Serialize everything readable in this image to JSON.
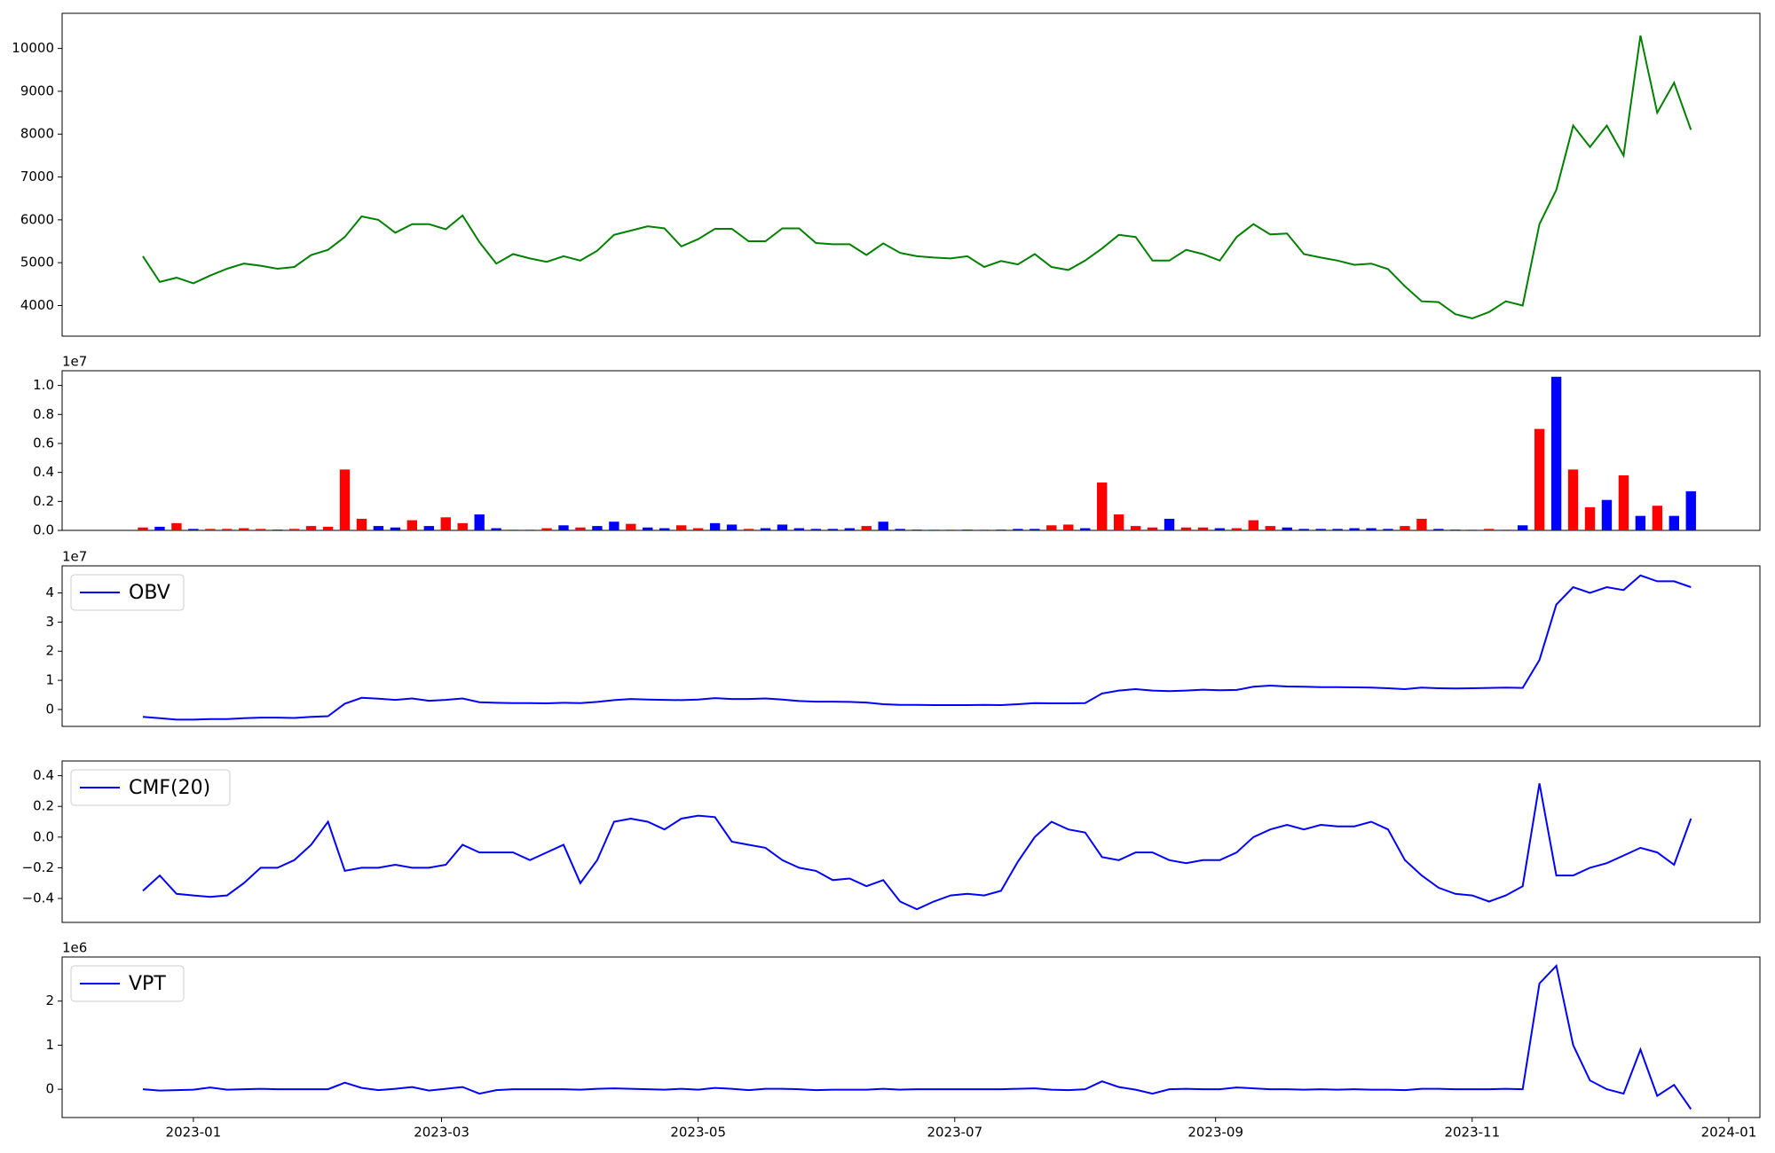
{
  "chart_data": [
    {
      "type": "line",
      "color": "#008000",
      "xlim": [
        -4.8,
        96.1
      ],
      "ylim": [
        3286,
        10820
      ],
      "yticks": [
        4000,
        5000,
        6000,
        7000,
        8000,
        9000,
        10000
      ],
      "values": [
        5150,
        4550,
        4650,
        4520,
        4700,
        4860,
        4980,
        4930,
        4860,
        4900,
        5180,
        5300,
        5600,
        6080,
        6000,
        5700,
        5900,
        5900,
        5780,
        6100,
        5480,
        4980,
        5200,
        5100,
        5020,
        5150,
        5050,
        5280,
        5650,
        5750,
        5850,
        5800,
        5380,
        5550,
        5790,
        5790,
        5500,
        5500,
        5800,
        5800,
        5460,
        5430,
        5430,
        5180,
        5450,
        5230,
        5150,
        5120,
        5100,
        5150,
        4900,
        5040,
        4960,
        5200,
        4900,
        4830,
        5050,
        5330,
        5650,
        5600,
        5050,
        5050,
        5300,
        5200,
        5050,
        5600,
        5900,
        5660,
        5680,
        5200,
        5120,
        5050,
        4950,
        4980,
        4850,
        4450,
        4100,
        4080,
        3800,
        3700,
        3850,
        4100,
        4000,
        5900,
        6700,
        8200,
        7700,
        8200,
        7500,
        10300,
        8500,
        9200,
        8100
      ]
    },
    {
      "type": "bar",
      "offset_text": "1e7",
      "xlim": [
        -4.8,
        96.1
      ],
      "ylim": [
        0,
        11016000
      ],
      "yticks": [
        {
          "value": 0,
          "label": "0.0"
        },
        {
          "value": 2000000,
          "label": "0.2"
        },
        {
          "value": 4000000,
          "label": "0.4"
        },
        {
          "value": 6000000,
          "label": "0.6"
        },
        {
          "value": 8000000,
          "label": "0.8"
        },
        {
          "value": 10000000,
          "label": "1.0"
        }
      ],
      "values": [
        200000,
        250000,
        500000,
        100000,
        100000,
        100000,
        150000,
        100000,
        50000,
        100000,
        300000,
        250000,
        4200000,
        800000,
        300000,
        200000,
        700000,
        300000,
        900000,
        500000,
        1100000,
        150000,
        50000,
        50000,
        150000,
        350000,
        200000,
        300000,
        600000,
        450000,
        200000,
        150000,
        350000,
        150000,
        500000,
        400000,
        100000,
        150000,
        400000,
        150000,
        100000,
        100000,
        150000,
        300000,
        600000,
        100000,
        50000,
        50000,
        50000,
        50000,
        50000,
        50000,
        100000,
        100000,
        350000,
        400000,
        150000,
        3300000,
        1100000,
        300000,
        200000,
        800000,
        200000,
        200000,
        150000,
        150000,
        700000,
        300000,
        200000,
        100000,
        100000,
        100000,
        150000,
        150000,
        100000,
        300000,
        800000,
        100000,
        50000,
        50000,
        100000,
        50000,
        350000,
        7000000,
        10600000,
        4200000,
        1600000,
        2100000,
        3800000,
        1000000,
        1700000,
        1000000,
        2700000
      ],
      "colors": [
        "red",
        "blue",
        "red",
        "blue",
        "red",
        "red",
        "red",
        "red",
        "blue",
        "red",
        "red",
        "red",
        "red",
        "red",
        "blue",
        "blue",
        "red",
        "blue",
        "red",
        "red",
        "blue",
        "blue",
        "red",
        "red",
        "red",
        "blue",
        "red",
        "blue",
        "blue",
        "red",
        "blue",
        "blue",
        "red",
        "red",
        "blue",
        "blue",
        "red",
        "blue",
        "blue",
        "blue",
        "blue",
        "blue",
        "blue",
        "red",
        "blue",
        "blue",
        "blue",
        "red",
        "red",
        "blue",
        "red",
        "blue",
        "blue",
        "blue",
        "red",
        "red",
        "blue",
        "red",
        "red",
        "red",
        "red",
        "blue",
        "red",
        "red",
        "blue",
        "red",
        "red",
        "red",
        "blue",
        "blue",
        "blue",
        "blue",
        "blue",
        "blue",
        "blue",
        "red",
        "red",
        "blue",
        "blue",
        "red",
        "red",
        "red",
        "blue",
        "red",
        "blue",
        "red",
        "red",
        "blue",
        "red",
        "blue",
        "red",
        "blue",
        "blue"
      ]
    },
    {
      "type": "line",
      "offset_text": "1e7",
      "legend": "upper left",
      "xlim": [
        -4.8,
        96.1
      ],
      "ylim": [
        -5800000,
        49300000
      ],
      "yticks": [
        0,
        {
          "value": 10000000,
          "label": "1"
        },
        {
          "value": 20000000,
          "label": "2"
        },
        {
          "value": 30000000,
          "label": "3"
        },
        {
          "value": 40000000,
          "label": "4"
        }
      ],
      "series": [
        {
          "name": "OBV",
          "color": "#0000ff",
          "values": [
            -2500000,
            -3000000,
            -3500000,
            -3500000,
            -3300000,
            -3300000,
            -3000000,
            -2800000,
            -2800000,
            -2900000,
            -2500000,
            -2300000,
            2000000,
            4000000,
            3700000,
            3300000,
            3800000,
            3000000,
            3300000,
            3800000,
            2500000,
            2300000,
            2200000,
            2200000,
            2100000,
            2300000,
            2200000,
            2600000,
            3200000,
            3600000,
            3400000,
            3300000,
            3200000,
            3400000,
            3900000,
            3600000,
            3600000,
            3800000,
            3400000,
            2900000,
            2700000,
            2700000,
            2600000,
            2400000,
            1800000,
            1600000,
            1600000,
            1500000,
            1500000,
            1500000,
            1600000,
            1500000,
            1800000,
            2200000,
            2100000,
            2100000,
            2200000,
            5500000,
            6500000,
            7000000,
            6500000,
            6300000,
            6500000,
            6800000,
            6600000,
            6700000,
            7800000,
            8200000,
            7900000,
            7800000,
            7700000,
            7700000,
            7600000,
            7500000,
            7300000,
            7000000,
            7500000,
            7300000,
            7200000,
            7300000,
            7400000,
            7500000,
            7400000,
            17000000,
            36000000,
            42000000,
            40000000,
            42000000,
            41000000,
            46000000,
            44000000,
            44000000,
            42000000
          ]
        }
      ]
    },
    {
      "type": "line",
      "legend": "upper left",
      "xlim": [
        -4.8,
        96.1
      ],
      "ylim": [
        -0.556,
        0.496
      ],
      "yticks": [
        {
          "value": -0.4,
          "label": "−0.4"
        },
        {
          "value": -0.2,
          "label": "−0.2"
        },
        {
          "value": 0,
          "label": "0.0"
        },
        0.2,
        0.4
      ],
      "series": [
        {
          "name": "CMF(20)",
          "color": "#0000ff",
          "values": [
            -0.35,
            -0.25,
            -0.37,
            -0.38,
            -0.39,
            -0.38,
            -0.3,
            -0.2,
            -0.2,
            -0.15,
            -0.05,
            0.1,
            -0.22,
            -0.2,
            -0.2,
            -0.18,
            -0.2,
            -0.2,
            -0.18,
            -0.05,
            -0.1,
            -0.1,
            -0.1,
            -0.15,
            -0.1,
            -0.05,
            -0.3,
            -0.15,
            0.1,
            0.12,
            0.1,
            0.05,
            0.12,
            0.14,
            0.13,
            -0.03,
            -0.05,
            -0.07,
            -0.15,
            -0.2,
            -0.22,
            -0.28,
            -0.27,
            -0.32,
            -0.28,
            -0.42,
            -0.47,
            -0.42,
            -0.38,
            -0.37,
            -0.38,
            -0.35,
            -0.16,
            0,
            0.1,
            0.05,
            0.03,
            -0.13,
            -0.15,
            -0.1,
            -0.1,
            -0.15,
            -0.17,
            -0.15,
            -0.15,
            -0.1,
            0,
            0.05,
            0.08,
            0.05,
            0.08,
            0.07,
            0.07,
            0.1,
            0.05,
            -0.15,
            -0.25,
            -0.33,
            -0.37,
            -0.38,
            -0.42,
            -0.38,
            -0.32,
            0.35,
            -0.25,
            -0.25,
            -0.2,
            -0.17,
            -0.12,
            -0.07,
            -0.1,
            -0.18,
            0.12
          ]
        }
      ]
    },
    {
      "type": "line",
      "offset_text": "1e6",
      "legend": "upper left",
      "xlim": [
        -4.8,
        96.1
      ],
      "ylim": [
        -641000,
        3000000
      ],
      "yticks": [
        0,
        {
          "value": 1000000,
          "label": "1"
        },
        {
          "value": 2000000,
          "label": "2"
        }
      ],
      "xticks": [
        {
          "value": 3,
          "label": "2023-01"
        },
        {
          "value": 17.75,
          "label": "2023-03"
        },
        {
          "value": 33,
          "label": "2023-05"
        },
        {
          "value": 48.25,
          "label": "2023-07"
        },
        {
          "value": 63.75,
          "label": "2023-09"
        },
        {
          "value": 79,
          "label": "2023-11"
        },
        {
          "value": 94.25,
          "label": "2024-01"
        }
      ],
      "series": [
        {
          "name": "VPT",
          "color": "#0000ff",
          "values": [
            0,
            -30000,
            -20000,
            -10000,
            40000,
            -10000,
            0,
            10000,
            0,
            0,
            0,
            0,
            150000,
            30000,
            -20000,
            10000,
            50000,
            -30000,
            10000,
            50000,
            -100000,
            -20000,
            0,
            0,
            0,
            0,
            -10000,
            10000,
            20000,
            10000,
            0,
            -10000,
            10000,
            -10000,
            30000,
            10000,
            -20000,
            10000,
            10000,
            0,
            -20000,
            -10000,
            -10000,
            -10000,
            10000,
            -10000,
            0,
            0,
            0,
            0,
            0,
            0,
            10000,
            20000,
            -10000,
            -20000,
            0,
            180000,
            50000,
            -10000,
            -100000,
            0,
            10000,
            0,
            0,
            40000,
            20000,
            0,
            0,
            -10000,
            0,
            -10000,
            0,
            -10000,
            -10000,
            -20000,
            10000,
            10000,
            0,
            0,
            0,
            10000,
            0,
            2400000,
            2800000,
            1000000,
            200000,
            0,
            -100000,
            900000,
            -150000,
            100000,
            -450000
          ]
        }
      ]
    }
  ]
}
